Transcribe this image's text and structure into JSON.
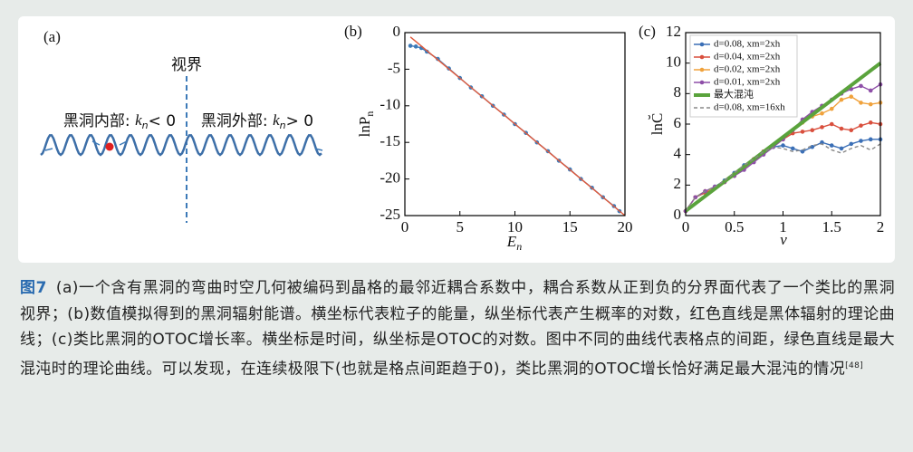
{
  "diagram": {
    "panel_label": "(a)",
    "horizon": "视界",
    "inside": {
      "text": "黑洞内部: ",
      "var": "k",
      "sub": "n",
      "rel": "< 0"
    },
    "outside": {
      "text": "黑洞外部: ",
      "var": "k",
      "sub": "n",
      "rel": "> 0"
    }
  },
  "chart_data": [
    {
      "type": "line",
      "panel_label": "(b)",
      "xlabel": "E",
      "xlabel_sub": "n",
      "ylabel": "lnP",
      "ylabel_sub": "n",
      "xlim": [
        0,
        20
      ],
      "ylim": [
        -25,
        0
      ],
      "xticks": [
        0,
        5,
        10,
        15,
        20
      ],
      "yticks": [
        0,
        -5,
        -10,
        -15,
        -20,
        -25
      ],
      "series": [
        {
          "color": "#3d7ab8",
          "markers": true,
          "x": [
            0.5,
            1,
            1.5,
            2,
            3,
            4,
            5,
            6,
            7,
            8,
            9,
            10,
            11,
            12,
            13,
            14,
            15,
            16,
            17,
            18,
            19,
            19.5
          ],
          "values": [
            -1.8,
            -1.9,
            -2.1,
            -2.6,
            -3.6,
            -4.9,
            -6.2,
            -7.5,
            -8.7,
            -10,
            -11.2,
            -12.5,
            -13.7,
            -15,
            -16.2,
            -17.5,
            -18.7,
            -20,
            -21.2,
            -22.5,
            -23.7,
            -24.4
          ]
        },
        {
          "color": "#e05a3c",
          "markers": false,
          "x": [
            0.5,
            20
          ],
          "values": [
            -0.6,
            -25
          ]
        }
      ]
    },
    {
      "type": "line",
      "panel_label": "(c)",
      "xlabel": "ν",
      "ylabel": "lnC̆",
      "xlim": [
        0,
        2
      ],
      "ylim": [
        0,
        12
      ],
      "xticks": [
        0,
        0.5,
        1,
        1.5,
        2
      ],
      "yticks": [
        0,
        2,
        4,
        6,
        8,
        10,
        12
      ],
      "legend": "upper left",
      "x": [
        0,
        0.1,
        0.2,
        0.3,
        0.4,
        0.5,
        0.6,
        0.7,
        0.8,
        0.9,
        1,
        1.1,
        1.2,
        1.3,
        1.4,
        1.5,
        1.6,
        1.7,
        1.8,
        1.9,
        2
      ],
      "series": [
        {
          "name": "d=0.08, xm=2xh",
          "color": "#3b6fb6",
          "markers": true,
          "values": [
            0.3,
            1.2,
            1.5,
            1.9,
            2.3,
            2.8,
            3.3,
            3.7,
            4.2,
            4.5,
            4.6,
            4.4,
            4.2,
            4.5,
            4.8,
            4.6,
            4.4,
            4.7,
            4.9,
            5.0,
            5.0
          ]
        },
        {
          "name": "d=0.04, xm=2xh",
          "color": "#d94f3d",
          "markers": true,
          "values": [
            0.3,
            1.2,
            1.5,
            1.8,
            2.2,
            2.7,
            3.2,
            3.7,
            4.2,
            4.6,
            5.0,
            5.4,
            5.5,
            5.6,
            5.8,
            6.0,
            5.7,
            5.6,
            5.9,
            6.1,
            6.0
          ]
        },
        {
          "name": "d=0.02, xm=2xh",
          "color": "#f0a23c",
          "markers": true,
          "values": [
            0.3,
            1.2,
            1.6,
            1.8,
            2.2,
            2.6,
            3.1,
            3.6,
            4.1,
            4.6,
            5.1,
            5.6,
            6.1,
            6.5,
            6.7,
            7.0,
            7.6,
            7.8,
            7.4,
            7.3,
            7.4
          ]
        },
        {
          "name": "d=0.01, xm=2xh",
          "color": "#8e4fa8",
          "markers": true,
          "values": [
            0.3,
            1.2,
            1.6,
            1.9,
            2.2,
            2.6,
            3.0,
            3.5,
            4.0,
            4.5,
            5.0,
            5.6,
            6.3,
            6.8,
            7.2,
            7.6,
            8.0,
            8.3,
            8.5,
            8.2,
            8.6
          ]
        },
        {
          "name": "最大混沌",
          "color": "#5aa33c",
          "markers": false,
          "width": 4,
          "x": [
            0,
            2
          ],
          "values": [
            0.3,
            10
          ]
        },
        {
          "name": "d=0.08, xm=16xh",
          "color": "#888888",
          "markers": false,
          "dashed": true,
          "values": [
            0.3,
            1.2,
            1.6,
            1.9,
            2.3,
            2.8,
            3.3,
            3.7,
            4.2,
            4.5,
            4.4,
            4.2,
            4.3,
            4.6,
            4.7,
            4.3,
            4.1,
            4.4,
            4.6,
            4.3,
            4.7
          ]
        }
      ]
    }
  ],
  "caption": {
    "label": "图7",
    "text": "(a)一个含有黑洞的弯曲时空几何被编码到晶格的最邻近耦合系数中，耦合系数从正到负的分界面代表了一个类比的黑洞视界；(b)数值模拟得到的黑洞辐射能谱。横坐标代表粒子的能量，纵坐标代表产生概率的对数，红色直线是黑体辐射的理论曲线；(c)类比黑洞的OTOC增长率。横坐标是时间，纵坐标是OTOC的对数。图中不同的曲线代表格点的间距，绿色直线是最大混沌时的理论曲线。可以发现，在连续极限下(也就是格点间距趋于0)，类比黑洞的OTOC增长恰好满足最大混沌的情况",
    "ref": "[48]"
  }
}
